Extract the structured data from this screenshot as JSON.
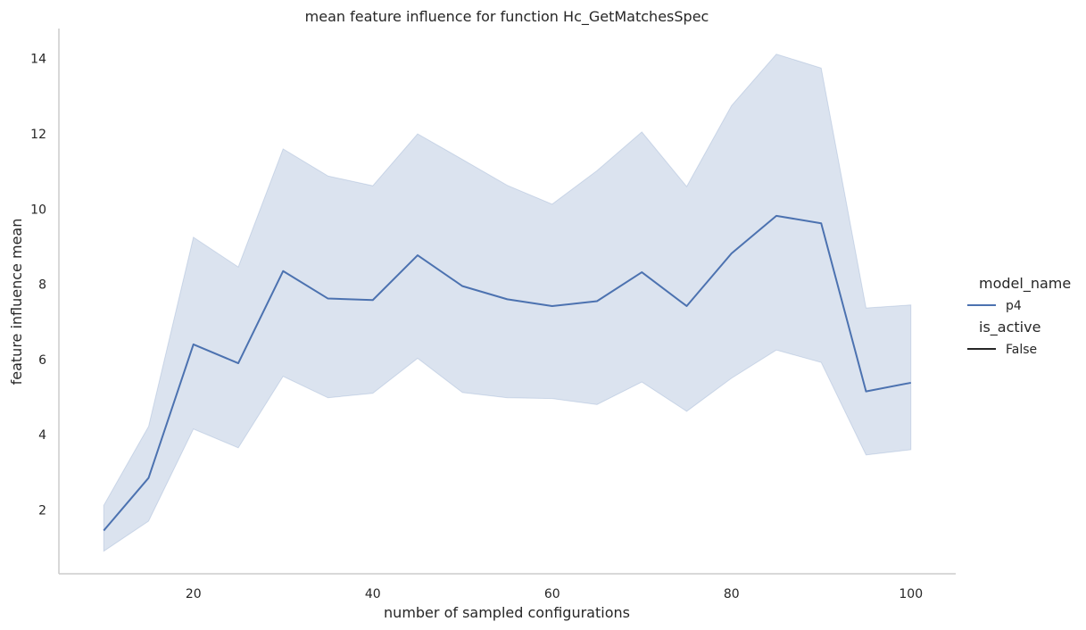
{
  "chart_data": {
    "type": "line",
    "title": "mean feature influence for function Hc_GetMatchesSpec",
    "xlabel": "number of sampled configurations",
    "ylabel": "feature influence mean",
    "xlim": [
      5,
      105
    ],
    "ylim": [
      0.3,
      14.8
    ],
    "xticks": [
      20,
      40,
      60,
      80,
      100
    ],
    "yticks": [
      2,
      4,
      6,
      8,
      10,
      12,
      14
    ],
    "grid": false,
    "legend_position": "right",
    "legend": [
      {
        "title": "model_name",
        "entries": [
          {
            "label": "p4",
            "color": "#4c72b0"
          }
        ]
      },
      {
        "title": "is_active",
        "entries": [
          {
            "label": "False",
            "color": "#262626"
          }
        ]
      }
    ],
    "series": [
      {
        "name": "p4",
        "color": "#4c72b0",
        "x": [
          10,
          15,
          20,
          25,
          30,
          35,
          40,
          45,
          50,
          55,
          60,
          65,
          70,
          75,
          80,
          85,
          90,
          95,
          100
        ],
        "y": [
          1.45,
          2.85,
          6.4,
          5.9,
          8.35,
          7.62,
          7.58,
          8.77,
          7.95,
          7.6,
          7.42,
          7.55,
          8.32,
          7.42,
          8.82,
          9.82,
          9.62,
          5.15,
          5.38
        ],
        "ci_lower": [
          0.9,
          1.7,
          4.15,
          3.65,
          5.55,
          4.98,
          5.1,
          6.03,
          5.12,
          4.98,
          4.96,
          4.8,
          5.4,
          4.62,
          5.5,
          6.25,
          5.92,
          3.46,
          3.6
        ],
        "ci_upper": [
          2.12,
          4.22,
          9.25,
          8.46,
          11.6,
          10.88,
          10.62,
          12.0,
          11.32,
          10.63,
          10.13,
          11.02,
          12.05,
          10.6,
          12.75,
          14.12,
          13.75,
          7.37,
          7.45
        ]
      }
    ]
  }
}
